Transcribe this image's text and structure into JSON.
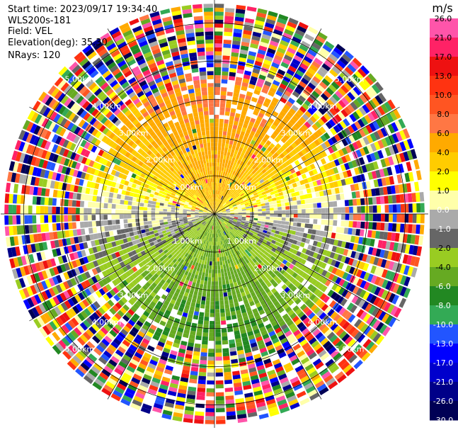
{
  "header": {
    "start_time": "Start time: 2023/09/17 19:34:40",
    "site": "WLS200s-181",
    "field": "Field: VEL",
    "elevation": "Elevation(deg): 35.30",
    "nrays": "NRays: 120"
  },
  "chart_data": {
    "type": "heatmap",
    "title": "",
    "field": "VEL",
    "unit_label": "m/s",
    "nrays": 120,
    "range_rings": [
      {
        "label": "1.00km",
        "km": 1.0
      },
      {
        "label": "2.00km",
        "km": 2.0
      },
      {
        "label": "3.00km",
        "km": 3.0
      },
      {
        "label": "4.00km",
        "km": 4.0
      },
      {
        "label": "5.00km",
        "km": 5.0
      }
    ],
    "max_range_km": 5.6,
    "radial_lines_deg": [
      0,
      30,
      60,
      90,
      120,
      150,
      180,
      210,
      240,
      270,
      300,
      330
    ],
    "colorbar": {
      "labels": [
        "26.0",
        "21.0",
        "17.0",
        "13.0",
        "10.0",
        "8.0",
        "6.0",
        "4.0",
        "2.0",
        "1.0",
        "0.0",
        "-1.0",
        "-2.0",
        "-4.0",
        "-6.0",
        "-8.0",
        "-10.0",
        "-13.0",
        "-17.0",
        "-21.0",
        "-26.0",
        "-30.0"
      ],
      "colors": [
        "#ff55aa",
        "#ff2266",
        "#ee1111",
        "#ff3311",
        "#ff5522",
        "#ff7744",
        "#ffaa00",
        "#ffcc00",
        "#ffff00",
        "#ffffaa",
        "#aaaaaa",
        "#666666",
        "#99cc22",
        "#66aa22",
        "#228822",
        "#33aa55",
        "#2255ff",
        "#0000ff",
        "#0000cc",
        "#000088",
        "#000055"
      ]
    },
    "dominant_pattern": [
      {
        "sector": "north (az 300-60), r < 3.5 km",
        "velocity_ms": "2 to 6"
      },
      {
        "sector": "south (az 120-240), r < 3.5 km",
        "velocity_ms": "-2 to -8"
      },
      {
        "sector": "east-west near horizontal",
        "velocity_ms": "about 0"
      },
      {
        "sector": "r > 3.5 km",
        "velocity_ms": "noise, full range"
      }
    ]
  }
}
